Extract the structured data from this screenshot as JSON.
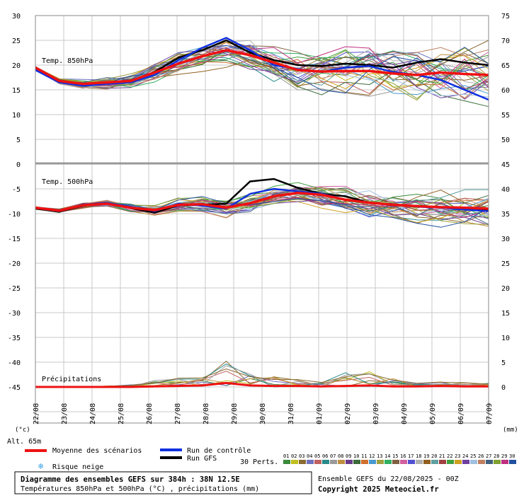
{
  "chart_data": {
    "type": "line",
    "title": "Diagramme des ensembles GEFS sur 384h : 38N 12.5E",
    "subtitle": "Températures 850hPa et 500hPa (°C) , précipitations (mm)",
    "run_info": "Ensemble GEFS du 22/08/2025 - 00Z",
    "copyright": "Copyright 2025 Meteociel.fr",
    "altitude": "Alt. 65m",
    "left_axis_unit": "(°c)",
    "right_axis_unit": "(mm)",
    "left_ticks": [
      "30",
      "25",
      "20",
      "15",
      "10",
      "5",
      "0",
      "-5",
      "-10",
      "-15",
      "-20",
      "-25",
      "-30",
      "-35",
      "-40",
      "-45"
    ],
    "right_ticks_top": [
      "75",
      "70",
      "65",
      "60",
      "55",
      "50",
      "45"
    ],
    "right_ticks_bottom": [
      "40",
      "35",
      "30",
      "25",
      "20",
      "15",
      "10",
      "5",
      "0"
    ],
    "x_labels": [
      "22/08",
      "23/08",
      "24/08",
      "25/08",
      "26/08",
      "27/08",
      "28/08",
      "29/08",
      "30/08",
      "31/08",
      "01/09",
      "02/09",
      "03/09",
      "04/09",
      "05/09",
      "06/09",
      "07/09"
    ],
    "panel_labels": {
      "t850": "Temp. 850hPa",
      "t500": "Temp. 500hPa",
      "precip": "Précipitations"
    },
    "legend": {
      "mean": "Moyenne des scénarios",
      "control": "Run de contrôle",
      "gfs": "Run GFS",
      "snow": "Risque neige",
      "perts": "30 Perts."
    },
    "member_numbers": [
      "01",
      "02",
      "03",
      "04",
      "05",
      "06",
      "07",
      "08",
      "09",
      "10",
      "11",
      "12",
      "13",
      "14",
      "15",
      "16",
      "17",
      "18",
      "19",
      "20",
      "21",
      "22",
      "23",
      "24",
      "25",
      "26",
      "27",
      "28",
      "29",
      "30"
    ],
    "member_colors": [
      "#3c8a3c",
      "#c0c020",
      "#8a6a30",
      "#7070c0",
      "#c06060",
      "#2a8a8a",
      "#9a9a9a",
      "#c09040",
      "#6a3a8a",
      "#3a6a3a",
      "#d07030",
      "#4a9ad0",
      "#a0a040",
      "#30b060",
      "#806040",
      "#d060a0",
      "#5050d0",
      "#b0b0b0",
      "#906020",
      "#60a0a0",
      "#a04040",
      "#40a040",
      "#d0a020",
      "#7040a0",
      "#a0c0e0",
      "#c08060",
      "#406080",
      "#80a030",
      "#c03080",
      "#2050a0"
    ],
    "control_color": "#1030e0",
    "gfs_color": "#000000",
    "mean_color": "#ee1111",
    "series": [
      {
        "name": "Moyenne 850hPa",
        "values": [
          19.5,
          16.8,
          16.2,
          16.5,
          16.8,
          18.5,
          20.3,
          21.8,
          23.0,
          22.0,
          20.5,
          19.0,
          18.7,
          18.8,
          18.8,
          18.3,
          18.0,
          18.5,
          18.2,
          18.0
        ]
      },
      {
        "name": "Moyenne 500hPa",
        "values": [
          -8.8,
          -9.4,
          -8.3,
          -8.0,
          -8.8,
          -9.3,
          -8.2,
          -8.1,
          -8.8,
          -7.9,
          -6.5,
          -5.8,
          -6.2,
          -7.2,
          -7.8,
          -8.2,
          -8.5,
          -8.7,
          -8.8,
          -9.0
        ]
      },
      {
        "name": "Contrôle 850hPa",
        "values": [
          19.0,
          16.5,
          15.8,
          16.2,
          16.5,
          18.0,
          21.0,
          23.5,
          25.5,
          23.0,
          20.0,
          19.2,
          18.6,
          19.5,
          19.8,
          18.6,
          18.0,
          17.0,
          15.0,
          13.0
        ]
      },
      {
        "name": "GFS 850hPa",
        "values": [
          19.2,
          16.6,
          16.0,
          16.4,
          16.8,
          18.6,
          21.5,
          23.0,
          25.0,
          22.5,
          21.0,
          20.0,
          19.8,
          20.3,
          20.0,
          19.5,
          20.5,
          21.2,
          20.5,
          20.0
        ]
      },
      {
        "name": "Contrôle 500hPa",
        "values": [
          -8.8,
          -9.5,
          -8.2,
          -7.8,
          -8.6,
          -9.5,
          -8.0,
          -8.4,
          -9.0,
          -6.0,
          -5.0,
          -5.5,
          -6.0,
          -7.2,
          -7.8,
          -8.1,
          -8.6,
          -8.8,
          -9.2,
          -9.5
        ]
      },
      {
        "name": "GFS 500hPa",
        "values": [
          -9.0,
          -9.6,
          -8.4,
          -7.9,
          -8.9,
          -9.8,
          -8.3,
          -8.2,
          -8.0,
          -3.5,
          -3.0,
          -4.8,
          -6.0,
          -6.5,
          -7.8,
          -8.3,
          -8.4,
          -8.8,
          -9.0,
          -9.3
        ]
      }
    ],
    "precip_mean": [
      0,
      0,
      0,
      0,
      0,
      0.1,
      0.2,
      0.3,
      0.8,
      0.3,
      0.2,
      0.2,
      0.1,
      0.2,
      0.3,
      0.1,
      0.1,
      0.2,
      0.1,
      0.1
    ],
    "precip_max": [
      0,
      0,
      0,
      0.2,
      0.5,
      1.5,
      1.8,
      2.0,
      6.5,
      3.0,
      2.5,
      1.5,
      1.0,
      3.8,
      3.5,
      2.0,
      0.8,
      1.2,
      1.0,
      0.8
    ],
    "x_steps": 20,
    "ylim_left": [
      -45,
      30
    ],
    "ylim_t850_right": [
      45,
      75
    ],
    "ylim_lower_right": [
      0,
      40
    ],
    "grid": true,
    "legend_position": "bottom"
  }
}
